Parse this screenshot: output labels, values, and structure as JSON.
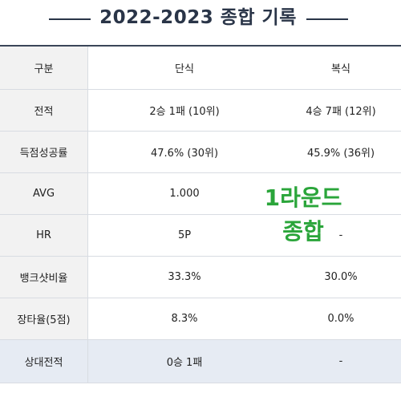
{
  "title": "2022-2023 종합 기록",
  "columns": {
    "label": "구분",
    "single": "단식",
    "double": "복식"
  },
  "rows": [
    {
      "label": "전적",
      "single": "2승 1패 (10위)",
      "double": "4승 7패 (12위)"
    },
    {
      "label": "득점성공률",
      "single": "47.6% (30위)",
      "double": "45.9% (36위)"
    },
    {
      "label": "AVG",
      "single": "1.000",
      "double": ""
    },
    {
      "label": "HR",
      "single": "5P",
      "double": "-"
    },
    {
      "label": "뱅크샷비율",
      "single": "33.3%",
      "double": "30.0%"
    },
    {
      "label": "장타율(5점)",
      "single": "8.3%",
      "double": "0.0%"
    },
    {
      "label": "상대전적",
      "single": "0승 1패",
      "double": "-"
    }
  ],
  "overlay": {
    "line1": "1라운드",
    "line2": "종합",
    "color": "#2aa53a"
  },
  "colors": {
    "title": "#2a3548",
    "header_bg": "#f2f2f2",
    "highlight_row_bg": "#e6ebf3"
  }
}
